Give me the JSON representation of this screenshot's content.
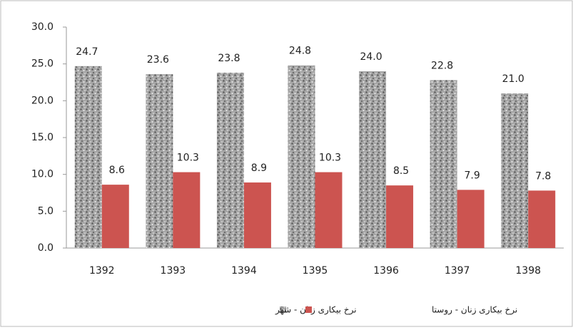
{
  "chart_data": {
    "type": "bar",
    "categories": [
      "1392",
      "1393",
      "1394",
      "1395",
      "1396",
      "1397",
      "1398"
    ],
    "series": [
      {
        "name": "نرخ بیکاری زنان - شهر",
        "color": "#a6a6a6",
        "values": [
          24.7,
          23.6,
          23.8,
          24.8,
          24.0,
          22.8,
          21.0
        ],
        "value_labels": [
          "24.7",
          "23.6",
          "23.8",
          "24.8",
          "24.0",
          "22.8",
          "21.0"
        ]
      },
      {
        "name": "نرخ بیکاری زنان - روستا",
        "color": "#cc5450",
        "values": [
          8.6,
          10.3,
          8.9,
          10.3,
          8.5,
          7.9,
          7.8
        ],
        "value_labels": [
          "8.6",
          "10.3",
          "8.9",
          "10.3",
          "8.5",
          "7.9",
          "7.8"
        ]
      }
    ],
    "ylim": [
      0,
      30
    ],
    "yticks": [
      {
        "value": 0,
        "label": "0.0"
      },
      {
        "value": 5,
        "label": "5.0"
      },
      {
        "value": 10,
        "label": "10.0"
      },
      {
        "value": 15,
        "label": "15.0"
      },
      {
        "value": 20,
        "label": "20.0"
      },
      {
        "value": 25,
        "label": "25.0"
      },
      {
        "value": 30,
        "label": "30.0"
      }
    ],
    "legend": "bottom"
  }
}
